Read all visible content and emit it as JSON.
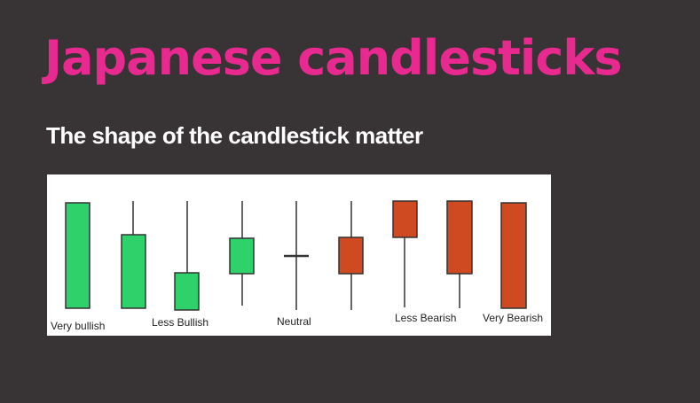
{
  "slide": {
    "title": "Japanese candlesticks",
    "subtitle": "The shape of the candlestick matter"
  },
  "colors": {
    "background": "#383334",
    "title": "#e8298f",
    "bullish": "#2ed16a",
    "bearish": "#cf4a21",
    "wick": "#333333"
  },
  "labels": {
    "very_bullish": "Very bullish",
    "less_bullish": "Less Bullish",
    "neutral": "Neutral",
    "less_bearish": "Less Bearish",
    "very_bearish": "Very Bearish"
  },
  "candles": [
    {
      "name": "candle-very-bullish",
      "type": "bullish"
    },
    {
      "name": "candle-bullish-2",
      "type": "bullish"
    },
    {
      "name": "candle-less-bullish",
      "type": "bullish"
    },
    {
      "name": "candle-bullish-4",
      "type": "bullish"
    },
    {
      "name": "candle-neutral",
      "type": "neutral"
    },
    {
      "name": "candle-bearish-1",
      "type": "bearish"
    },
    {
      "name": "candle-less-bearish",
      "type": "bearish"
    },
    {
      "name": "candle-bearish-3",
      "type": "bearish"
    },
    {
      "name": "candle-very-bearish",
      "type": "bearish"
    }
  ]
}
